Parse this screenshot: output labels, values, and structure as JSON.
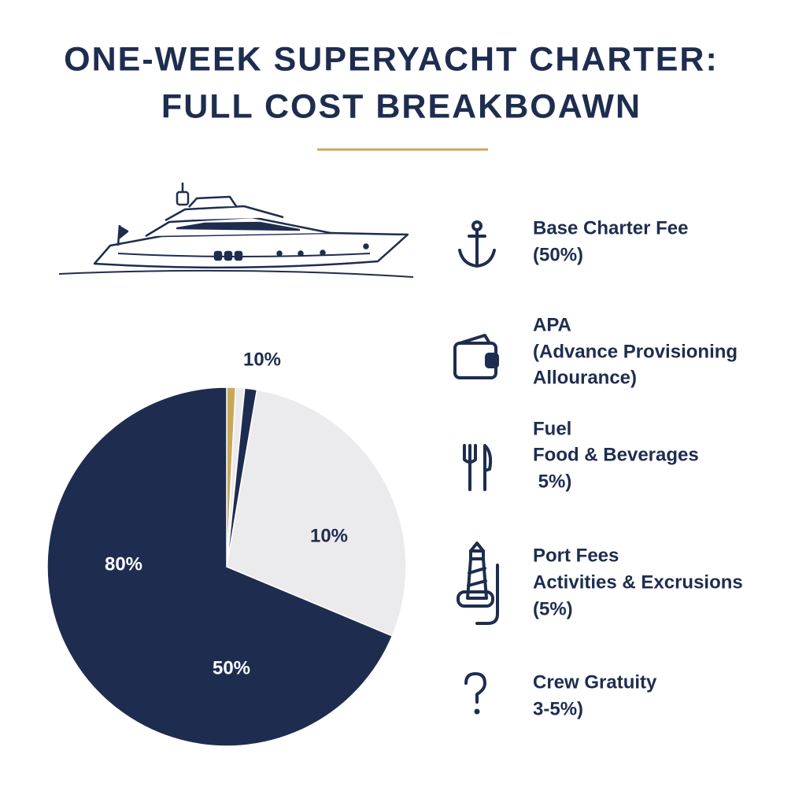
{
  "chart_data": {
    "type": "pie",
    "title": [
      "ONE-WEEK SUPERYACHT CHARTER:",
      "FULL COST BREAKBOAWN"
    ],
    "values": [
      0.8,
      0.8,
      1.1,
      28.6,
      68.7
    ],
    "colors": [
      "#c9a85a",
      "#ebebed",
      "#1e2d4f",
      "#ebebed",
      "#1e2d4f"
    ],
    "annotations": [
      "10%",
      "10%",
      "80%",
      "50%"
    ],
    "legend_items": [
      {
        "lines": [
          "Base Charter Fee",
          "(50%)"
        ]
      },
      {
        "lines": [
          "APA",
          "(Advance Provisioning",
          "Allourance)"
        ]
      },
      {
        "lines": [
          "Fuel",
          "Food & Beverages",
          " 5%)"
        ]
      },
      {
        "lines": [
          "Port Fees",
          "Activities & Excrusions",
          "(5%)"
        ]
      },
      {
        "lines": [
          "Crew Gratuity",
          "3-5%)"
        ]
      }
    ]
  }
}
